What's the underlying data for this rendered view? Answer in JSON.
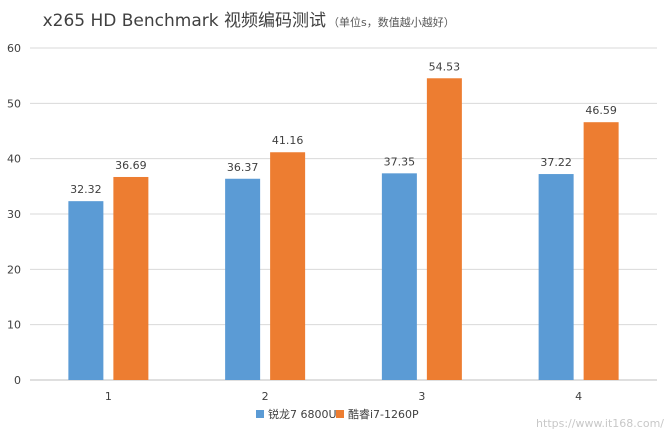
{
  "chart_data": {
    "type": "bar",
    "title": "x265 HD Benchmark 视频编码测试",
    "subtitle": "（单位s，数值越小越好）",
    "categories": [
      "1",
      "2",
      "3",
      "4"
    ],
    "series": [
      {
        "name": "锐龙7 6800U",
        "color": "#5b9bd5",
        "values": [
          32.32,
          36.37,
          37.35,
          37.22
        ]
      },
      {
        "name": "酷睿i7-1260P",
        "color": "#ed7d31",
        "values": [
          36.69,
          41.16,
          54.53,
          46.59
        ]
      }
    ],
    "ylim": [
      0,
      60
    ],
    "yticks": [
      0,
      10,
      20,
      30,
      40,
      50,
      60
    ],
    "grid": true,
    "legend_position": "bottom",
    "xlabel": "",
    "ylabel": ""
  },
  "watermark": "https://www.it168.com/"
}
